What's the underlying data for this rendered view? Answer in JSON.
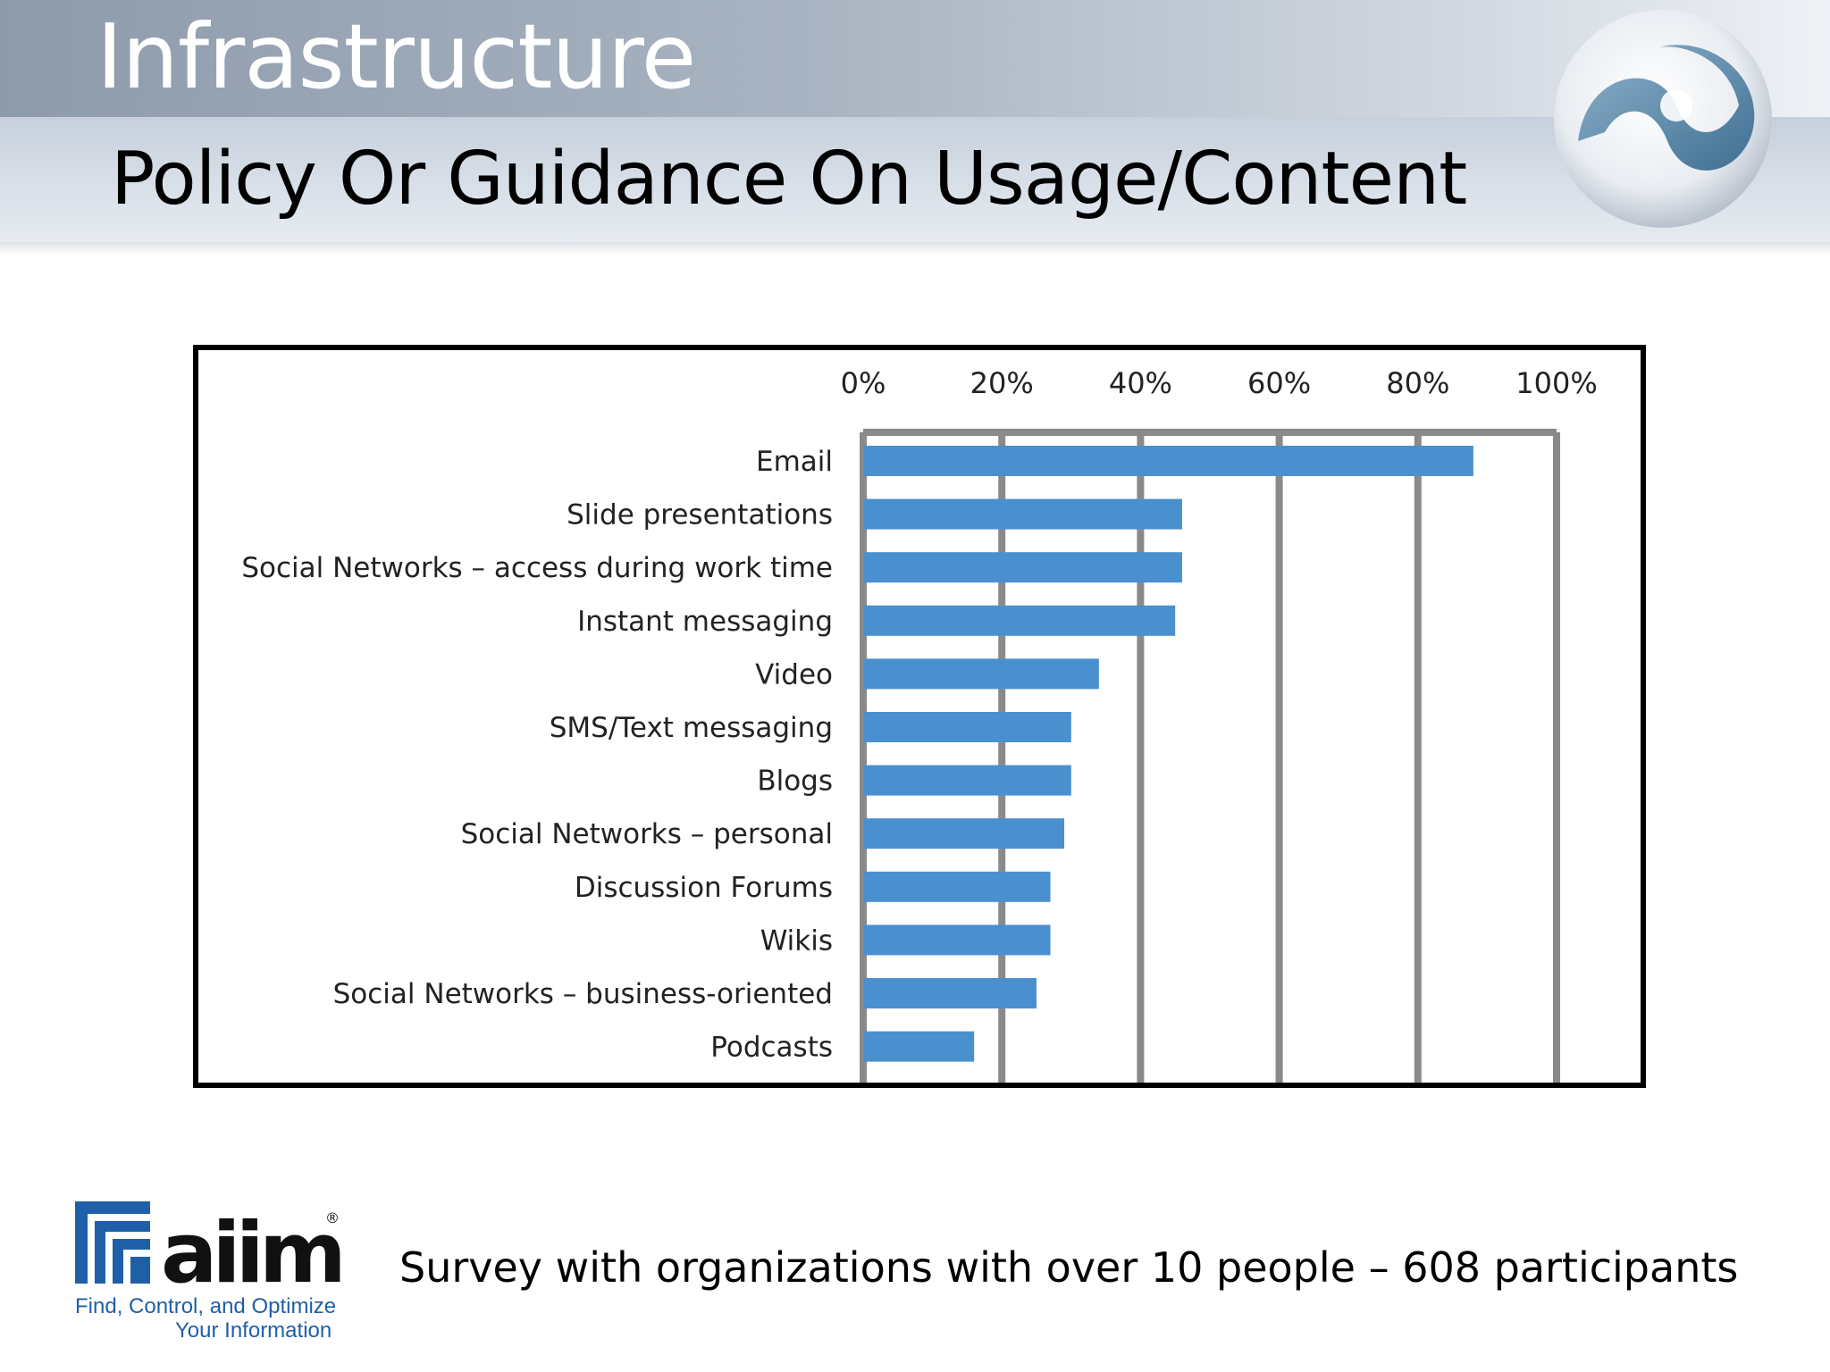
{
  "slide": {
    "title": "Infrastructure",
    "subtitle": "Policy Or Guidance On Usage/Content",
    "footnote": "Survey with organizations with over 10 people – 608 participants"
  },
  "logo": {
    "brand": "aiim",
    "registered": "®",
    "tagline_line1": "Find, Control, and Optimize",
    "tagline_line2": "Your Information",
    "color": "#1f5fa8"
  },
  "colors": {
    "bar": "#4a90cf",
    "grid": "#8a8a8a",
    "frame": "#000000"
  },
  "chart_data": {
    "type": "bar",
    "orientation": "horizontal",
    "title": "",
    "xlabel": "",
    "ylabel": "",
    "xlim": [
      0,
      100
    ],
    "x_ticks": [
      "0%",
      "20%",
      "40%",
      "60%",
      "80%",
      "100%"
    ],
    "x_tick_values": [
      0,
      20,
      40,
      60,
      80,
      100
    ],
    "axis_position": "top",
    "grid": true,
    "categories": [
      "Email",
      "Slide presentations",
      "Social Networks  – access during work time",
      "Instant messaging",
      "Video",
      "SMS/Text messaging",
      "Blogs",
      "Social Networks  – personal",
      "Discussion Forums",
      "Wikis",
      "Social Networks  – business-oriented",
      "Podcasts"
    ],
    "values": [
      88,
      46,
      46,
      45,
      34,
      30,
      30,
      29,
      27,
      27,
      25,
      16
    ]
  }
}
